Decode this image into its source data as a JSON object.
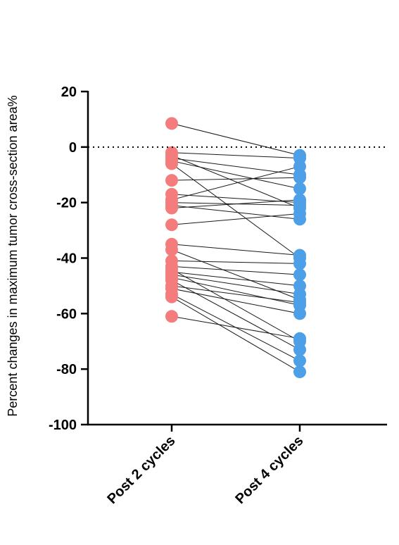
{
  "chart_data": {
    "type": "line",
    "title": "",
    "xlabel": "",
    "ylabel": "Percent changes in maximum tumor cross-section area%",
    "ylim": [
      -100,
      20
    ],
    "yticks": [
      20,
      0,
      -20,
      -40,
      -60,
      -80,
      -100
    ],
    "categories": [
      "Post 2 cycles",
      "Post 4 cycles"
    ],
    "reference_line": {
      "y": 0,
      "style": "dotted"
    },
    "colors": {
      "post2": "#f47c7c",
      "post4": "#4d9fe8"
    },
    "pairs": [
      [
        8.5,
        -3
      ],
      [
        -2,
        -4
      ],
      [
        -3,
        -22
      ],
      [
        -4,
        -10
      ],
      [
        -5,
        -15
      ],
      [
        -6,
        -40
      ],
      [
        -12,
        -11
      ],
      [
        -17,
        -20
      ],
      [
        -19,
        -7
      ],
      [
        -20,
        -21
      ],
      [
        -21,
        -26
      ],
      [
        -22,
        -19
      ],
      [
        -28,
        -24
      ],
      [
        -35,
        -39
      ],
      [
        -37,
        -55
      ],
      [
        -41,
        -42
      ],
      [
        -43,
        -46
      ],
      [
        -44,
        -70
      ],
      [
        -45,
        -50
      ],
      [
        -46,
        -53
      ],
      [
        -47,
        -57
      ],
      [
        -48,
        -73
      ],
      [
        -50,
        -56
      ],
      [
        -51,
        -60
      ],
      [
        -53,
        -77
      ],
      [
        -54,
        -81
      ],
      [
        -61,
        -69
      ]
    ]
  }
}
